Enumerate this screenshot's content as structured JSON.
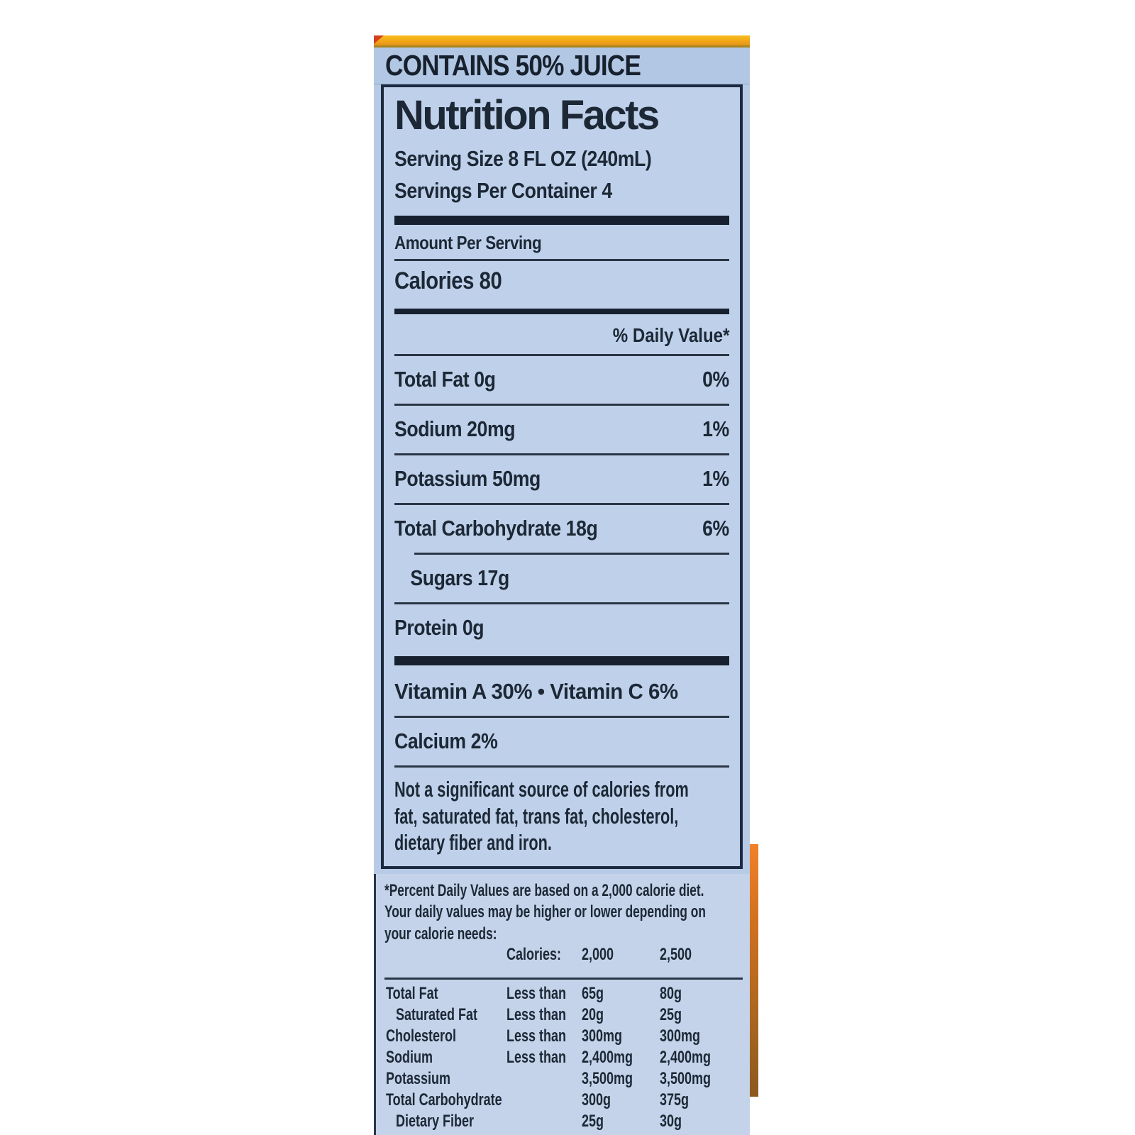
{
  "label": {
    "contains_banner": "CONTAINS 50% JUICE",
    "title": "Nutrition Facts",
    "serving_size": "Serving Size 8 FL OZ (240mL)",
    "servings_per_container": "Servings Per Container 4",
    "amount_per_serving": "Amount Per Serving",
    "calories_label": "Calories",
    "calories_value": "80",
    "daily_value_header": "% Daily Value*",
    "nutrients": [
      {
        "name": "Total Fat",
        "amount": "0g",
        "dv": "0%"
      },
      {
        "name": "Sodium",
        "amount": "20mg",
        "dv": "1%"
      },
      {
        "name": "Potassium",
        "amount": "50mg",
        "dv": "1%"
      },
      {
        "name": "Total Carbohydrate",
        "amount": "18g",
        "dv": "6%"
      },
      {
        "name": "Sugars",
        "amount": "17g",
        "dv": ""
      },
      {
        "name": "Protein",
        "amount": "0g",
        "dv": ""
      }
    ],
    "vitamins_line": "Vitamin A 30% • Vitamin C 6%",
    "calcium_line": "Calcium 2%",
    "disclaimer_lines": [
      "Not a significant source of calories from",
      "fat, saturated fat, trans fat, cholesterol,",
      "dietary fiber and iron."
    ],
    "footnote_lines": [
      "*Percent Daily Values are based on a 2,000 calorie diet.",
      "Your daily values may be higher or lower depending on",
      "your calorie needs:"
    ],
    "footnote_table": {
      "header": {
        "label": "Calories:",
        "col1": "2,000",
        "col2": "2,500"
      },
      "rows": [
        {
          "name": "Total Fat",
          "qualifier": "Less than",
          "col1": "65g",
          "col2": "80g"
        },
        {
          "name": "Saturated Fat",
          "qualifier": "Less than",
          "col1": "20g",
          "col2": "25g"
        },
        {
          "name": "Cholesterol",
          "qualifier": "Less than",
          "col1": "300mg",
          "col2": "300mg"
        },
        {
          "name": "Sodium",
          "qualifier": "Less than",
          "col1": "2,400mg",
          "col2": "2,400mg"
        },
        {
          "name": "Potassium",
          "qualifier": "",
          "col1": "3,500mg",
          "col2": "3,500mg"
        },
        {
          "name": "Total Carbohydrate",
          "qualifier": "",
          "col1": "300g",
          "col2": "375g"
        },
        {
          "name": "Dietary Fiber",
          "qualifier": "",
          "col1": "25g",
          "col2": "30g"
        }
      ]
    },
    "colors": {
      "label_blue": "#b7cbe6",
      "panel_blue": "#bfd1ea",
      "footnote_blue": "#c4d3ea",
      "ink": "#1d2836",
      "top_strip_orange": "#f0a418",
      "corner_red": "#d2401f",
      "side_strip_orange": "#d1711f"
    }
  }
}
